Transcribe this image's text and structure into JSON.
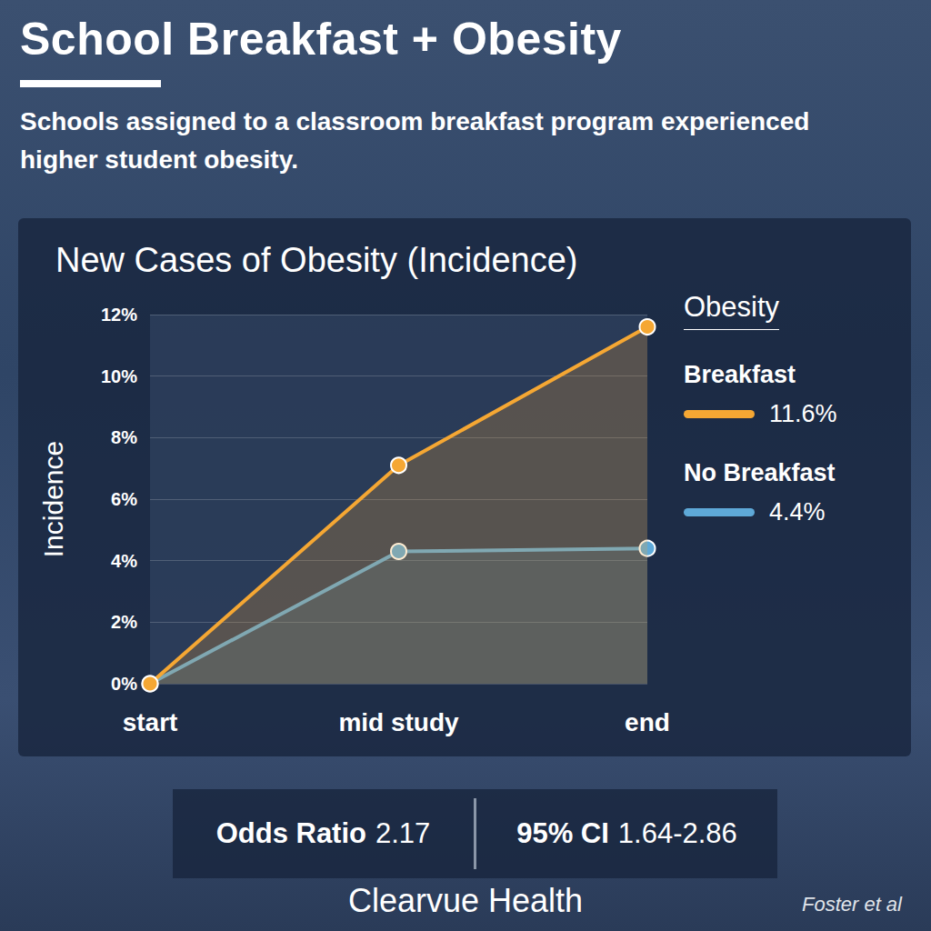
{
  "header": {
    "title": "School Breakfast + Obesity",
    "subtitle": "Schools assigned to a classroom breakfast program experienced higher student obesity."
  },
  "chart_data": {
    "type": "line",
    "title": "New Cases of Obesity (Incidence)",
    "y_label": "Incidence",
    "categories": [
      "start",
      "mid study",
      "end"
    ],
    "series": [
      {
        "name": "Breakfast",
        "color": "#f5a733",
        "values": [
          0,
          7.1,
          11.6
        ],
        "legend_label": "11.6%"
      },
      {
        "name": "No Breakfast",
        "color": "#5ea9d8",
        "values": [
          0,
          4.3,
          4.4
        ],
        "legend_label": "4.4%"
      }
    ],
    "ylim": [
      0,
      12
    ],
    "yticks": [
      {
        "value": 0,
        "label": "0%"
      },
      {
        "value": 2,
        "label": "2%"
      },
      {
        "value": 4,
        "label": "4%"
      },
      {
        "value": 6,
        "label": "6%"
      },
      {
        "value": 8,
        "label": "8%"
      },
      {
        "value": 10,
        "label": "10%"
      },
      {
        "value": 12,
        "label": "12%"
      }
    ],
    "grid": true,
    "legend": "right",
    "legend_title": "Obesity",
    "marker": "circle"
  },
  "footer": {
    "odds_ratio": {
      "label": "Odds Ratio",
      "value": 2.17
    },
    "ci": {
      "label": "95% CI",
      "text": "1.64-2.86"
    },
    "brand": "Clearvue Health",
    "source": "Foster et al"
  }
}
